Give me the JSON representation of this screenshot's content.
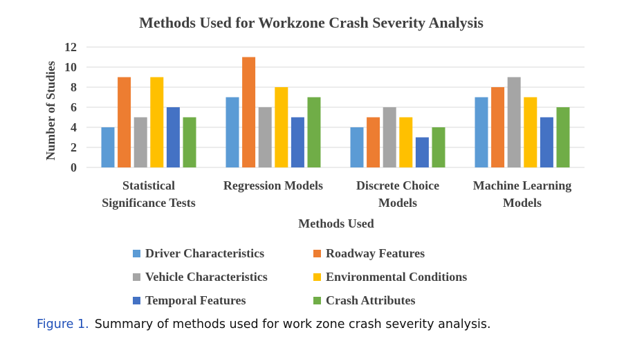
{
  "chart_data": {
    "type": "bar",
    "title": "Methods Used for Workzone Crash Severity Analysis",
    "xlabel": "Methods Used",
    "ylabel": "Number of Studies",
    "categories": [
      [
        "Statistical",
        "Significance Tests"
      ],
      [
        "Regression Models"
      ],
      [
        "Discrete Choice",
        "Models"
      ],
      [
        "Machine Learning",
        "Models"
      ]
    ],
    "ylim": [
      0,
      12
    ],
    "yticks": [
      0,
      2,
      4,
      6,
      8,
      10,
      12
    ],
    "grid": true,
    "legend_position": "bottom",
    "series": [
      {
        "name": "Driver Characteristics",
        "color": "#5b9bd5",
        "values": [
          4,
          7,
          4,
          7
        ]
      },
      {
        "name": "Roadway Features",
        "color": "#ed7d31",
        "values": [
          9,
          11,
          5,
          8
        ]
      },
      {
        "name": "Vehicle Characteristics",
        "color": "#a5a5a5",
        "values": [
          5,
          6,
          6,
          9
        ]
      },
      {
        "name": "Environmental Conditions",
        "color": "#ffc000",
        "values": [
          9,
          8,
          5,
          7
        ]
      },
      {
        "name": "Temporal Features",
        "color": "#4472c4",
        "values": [
          6,
          5,
          3,
          5
        ]
      },
      {
        "name": "Crash Attributes",
        "color": "#70ad47",
        "values": [
          5,
          7,
          4,
          6
        ]
      }
    ]
  },
  "caption": {
    "label": "Figure 1.",
    "text": "Summary of methods used for work zone crash severity analysis."
  }
}
